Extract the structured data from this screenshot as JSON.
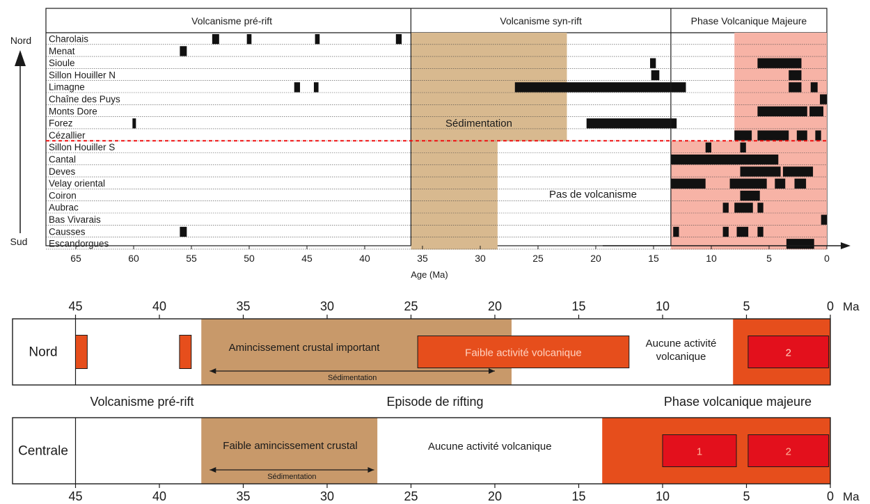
{
  "chart_data": [
    {
      "type": "timeline",
      "xlabel": "Age (Ma)",
      "xlim": [
        67,
        0
      ],
      "x_ticks": [
        "65",
        "60",
        "55",
        "50",
        "45",
        "40",
        "35",
        "30",
        "25",
        "20",
        "15",
        "10",
        "5",
        "0"
      ],
      "y_axis": {
        "top_label": "Nord",
        "bottom_label": "Sud",
        "direction": "north-to-south arrow"
      },
      "phases": [
        {
          "label": "Volcanisme pré-rift",
          "start": 67,
          "end": 36
        },
        {
          "label": "Volcanisme syn-rift",
          "start": 36,
          "end": 13.5
        },
        {
          "label": "Phase Volcanique Majeure",
          "start": 13.5,
          "end": 0
        }
      ],
      "shaded_zones": [
        {
          "kind": "sedimentation",
          "color": "#d8b98f",
          "start": 36,
          "end": 22.5,
          "rows": "Charolais-Cézallier"
        },
        {
          "kind": "sedimentation",
          "color": "#d8b98f",
          "start": 36,
          "end": 28.5,
          "rows": "Sillon Houiller S-Escandorgues"
        },
        {
          "kind": "major-phase",
          "color": "#f7b3a6",
          "start": 8,
          "end": 0,
          "rows": "Charolais-Cézallier"
        },
        {
          "kind": "major-phase",
          "color": "#f7b3a6",
          "start": 13.5,
          "end": 0,
          "rows": "Sillon Houiller S-Escandorgues"
        }
      ],
      "annotations": [
        "Sédimentation",
        "Pas de volcanisme"
      ],
      "divider": {
        "style": "red dashed",
        "between": [
          "Cézallier",
          "Sillon Houiller S"
        ]
      },
      "rows": [
        {
          "name": "Charolais",
          "activity": [
            [
              53.2,
              52.6
            ],
            [
              50.2,
              49.8
            ],
            [
              44.3,
              43.9
            ],
            [
              37.3,
              36.8
            ]
          ]
        },
        {
          "name": "Menat",
          "activity": [
            [
              56,
              55.4
            ]
          ]
        },
        {
          "name": "Sioule",
          "activity": [
            [
              15.3,
              14.8
            ],
            [
              6,
              2.2
            ]
          ]
        },
        {
          "name": "Sillon Houiller N",
          "activity": [
            [
              15.2,
              14.5
            ],
            [
              3.3,
              2.2
            ]
          ]
        },
        {
          "name": "Limagne",
          "activity": [
            [
              46.1,
              45.6
            ],
            [
              44.4,
              44
            ],
            [
              27,
              12.2
            ],
            [
              3.3,
              2.2
            ],
            [
              1.4,
              0.8
            ]
          ]
        },
        {
          "name": "Chaîne des Puys",
          "activity": [
            [
              0.6,
              0
            ]
          ]
        },
        {
          "name": "Monts Dore",
          "activity": [
            [
              6,
              1.7
            ],
            [
              1.5,
              0.3
            ]
          ]
        },
        {
          "name": "Forez",
          "activity": [
            [
              60.1,
              59.8
            ],
            [
              20.8,
              13
            ]
          ]
        },
        {
          "name": "Cézallier",
          "activity": [
            [
              8,
              6.5
            ],
            [
              6,
              3.3
            ],
            [
              2.6,
              1.7
            ],
            [
              1,
              0.5
            ]
          ]
        },
        {
          "name": "Sillon Houiller S",
          "activity": [
            [
              10.5,
              10
            ],
            [
              7.5,
              7
            ]
          ]
        },
        {
          "name": "Cantal",
          "activity": [
            [
              13.5,
              4.2
            ]
          ]
        },
        {
          "name": "Deves",
          "activity": [
            [
              7.5,
              4
            ],
            [
              3.8,
              1.2
            ]
          ]
        },
        {
          "name": "Velay oriental",
          "activity": [
            [
              13.5,
              10.5
            ],
            [
              8.4,
              5.2
            ],
            [
              4.5,
              3.6
            ],
            [
              2.8,
              1.8
            ]
          ]
        },
        {
          "name": "Coiron",
          "activity": [
            [
              7.5,
              5.8
            ]
          ]
        },
        {
          "name": "Aubrac",
          "activity": [
            [
              9,
              8.5
            ],
            [
              8,
              6.4
            ],
            [
              6,
              5.5
            ]
          ]
        },
        {
          "name": "Bas Vivarais",
          "activity": [
            [
              0.5,
              0
            ]
          ]
        },
        {
          "name": "Causses",
          "activity": [
            [
              56,
              55.4
            ],
            [
              13.3,
              12.8
            ],
            [
              9,
              8.5
            ],
            [
              7.8,
              6.8
            ],
            [
              6,
              5.5
            ]
          ]
        },
        {
          "name": "Escandorgues",
          "activity": [
            [
              3.5,
              1.1
            ]
          ]
        }
      ]
    },
    {
      "type": "timeline",
      "xlim": [
        45,
        0
      ],
      "x_ticks": [
        "45",
        "40",
        "35",
        "30",
        "25",
        "20",
        "15",
        "10",
        "5",
        "0"
      ],
      "unit_label": "Ma",
      "phase_labels": [
        "Volcanisme pré-rift",
        "Episode de rifting",
        "Phase volcanique majeure"
      ],
      "bands": [
        {
          "label": "Nord",
          "segments": [
            {
              "start": 45,
              "end": 37.5,
              "color": "#ffffff",
              "text": ""
            },
            {
              "start": 37.5,
              "end": 19,
              "color": "#c8996a",
              "text": "Amincissement crustal important"
            },
            {
              "start": 19,
              "end": 12,
              "color": "#ffffff",
              "text": ""
            },
            {
              "start": 12,
              "end": 5.8,
              "color": "#ffffff",
              "text": "Aucune activité volcanique"
            },
            {
              "start": 5.8,
              "end": 0,
              "color": "#e64e1c",
              "text": ""
            }
          ],
          "boxes": [
            {
              "start": 45,
              "end": 44.3,
              "color": "#e64e1c",
              "text": ""
            },
            {
              "start": 38.8,
              "end": 38.1,
              "color": "#e64e1c",
              "text": ""
            },
            {
              "start": 24.6,
              "end": 12,
              "color": "#e64e1c",
              "text": "Faible activité volcanique"
            },
            {
              "start": 4.9,
              "end": 0.1,
              "color": "#e3101c",
              "text": "2"
            }
          ],
          "sedimentation": {
            "start": 37,
            "end": 20,
            "label": "Sédimentation"
          }
        },
        {
          "label": "Centrale",
          "segments": [
            {
              "start": 45,
              "end": 37.5,
              "color": "#ffffff",
              "text": ""
            },
            {
              "start": 37.5,
              "end": 27,
              "color": "#c8996a",
              "text": "Faible amincissement crustal"
            },
            {
              "start": 27,
              "end": 13.6,
              "color": "#ffffff",
              "text": "Aucune activité volcanique"
            },
            {
              "start": 13.6,
              "end": 0,
              "color": "#e64e1c",
              "text": ""
            }
          ],
          "boxes": [
            {
              "start": 10,
              "end": 5.6,
              "color": "#e3101c",
              "text": "1"
            },
            {
              "start": 4.9,
              "end": 0.1,
              "color": "#e3101c",
              "text": "2"
            }
          ],
          "sedimentation": {
            "start": 37,
            "end": 27.2,
            "label": "Sédimentation"
          }
        }
      ]
    }
  ]
}
